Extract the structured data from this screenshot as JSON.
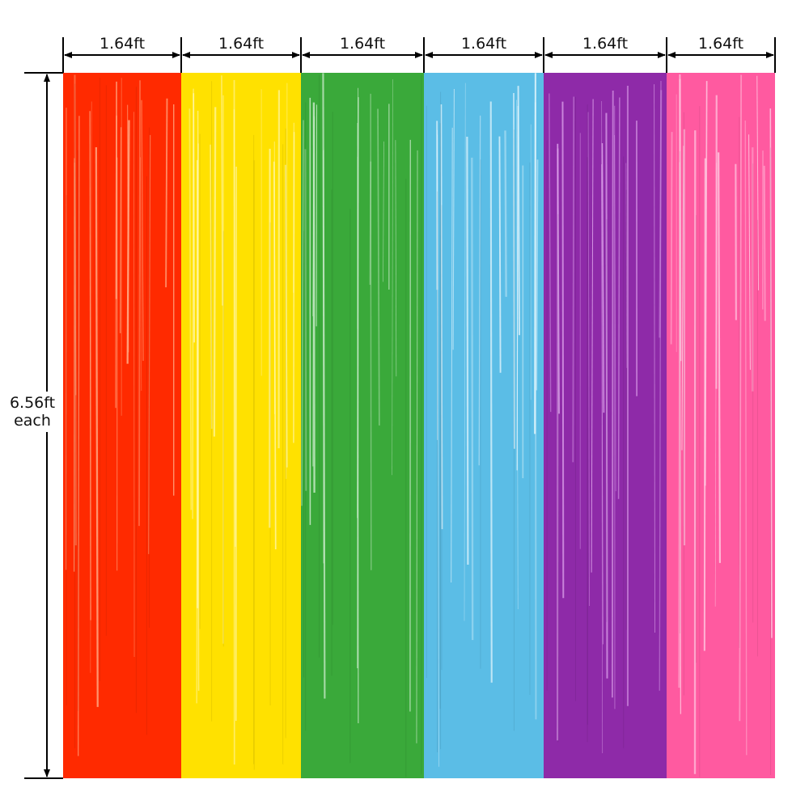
{
  "dimensions": {
    "width_label": "1.64ft",
    "height_label_line1": "6.56ft",
    "height_label_line2": "each"
  },
  "curtains": [
    {
      "name": "red",
      "color": "#ff2a00",
      "light": "#ffb08a"
    },
    {
      "name": "yellow",
      "color": "#ffe100",
      "light": "#fff7b0"
    },
    {
      "name": "green",
      "color": "#3aa93a",
      "light": "#cfeccf"
    },
    {
      "name": "blue",
      "color": "#5bbde6",
      "light": "#e4f5fc"
    },
    {
      "name": "purple",
      "color": "#8e2aa8",
      "light": "#e0a8ee"
    },
    {
      "name": "pink",
      "color": "#ff5aa0",
      "light": "#ffd2e6"
    }
  ]
}
